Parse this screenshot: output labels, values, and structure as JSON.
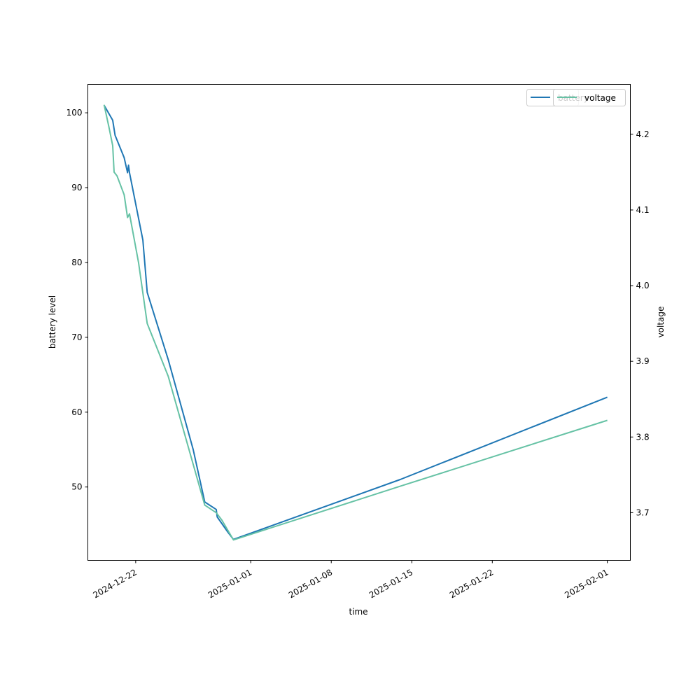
{
  "chart_data": {
    "type": "line",
    "xlabel": "time",
    "ylabel_left": "battery level",
    "ylabel_right": "voltage",
    "x_ticks": [
      "2024-12-22",
      "2025-01-01",
      "2025-01-08",
      "2025-01-15",
      "2025-01-22",
      "2025-02-01"
    ],
    "y_left_ticks": [
      50,
      60,
      70,
      80,
      90,
      100
    ],
    "y_right_ticks": [
      3.7,
      3.8,
      3.9,
      4.0,
      4.1,
      4.2
    ],
    "y_left_range": [
      40.2,
      103.8
    ],
    "y_right_range": [
      3.637,
      4.266
    ],
    "x_range": [
      "2024-12-17T20:10",
      "2025-02-03T00:00"
    ],
    "legend_placement": "top-right",
    "grid": false,
    "series": [
      {
        "name": "battery",
        "axis": "left",
        "color": "#1f77b4",
        "points": [
          [
            "2024-12-19T06:00",
            101
          ],
          [
            "2024-12-20T00:00",
            99
          ],
          [
            "2024-12-20T05:00",
            97
          ],
          [
            "2024-12-21T00:00",
            94
          ],
          [
            "2024-12-21T07:00",
            92
          ],
          [
            "2024-12-21T09:00",
            93
          ],
          [
            "2024-12-21T11:00",
            92
          ],
          [
            "2024-12-22T15:00",
            83
          ],
          [
            "2024-12-23T00:00",
            76
          ],
          [
            "2024-12-24T20:00",
            67
          ],
          [
            "2024-12-27T00:00",
            55
          ],
          [
            "2024-12-28T00:00",
            48
          ],
          [
            "2024-12-29T00:00",
            47
          ],
          [
            "2024-12-29T02:00",
            46
          ],
          [
            "2024-12-30T00:00",
            44
          ],
          [
            "2024-12-30T12:00",
            43
          ],
          [
            "2025-01-14T00:00",
            51
          ],
          [
            "2025-02-01T00:00",
            62
          ]
        ]
      },
      {
        "name": "voltage",
        "axis": "right",
        "color": "#66c2a5",
        "points": [
          [
            "2024-12-19T06:00",
            4.239
          ],
          [
            "2024-12-19T16:00",
            4.21
          ],
          [
            "2024-12-20T00:00",
            4.185
          ],
          [
            "2024-12-20T03:00",
            4.15
          ],
          [
            "2024-12-20T09:00",
            4.145
          ],
          [
            "2024-12-21T00:00",
            4.12
          ],
          [
            "2024-12-21T07:00",
            4.09
          ],
          [
            "2024-12-21T11:00",
            4.095
          ],
          [
            "2024-12-22T06:00",
            4.03
          ],
          [
            "2024-12-23T00:00",
            3.95
          ],
          [
            "2024-12-24T20:00",
            3.88
          ],
          [
            "2024-12-28T00:00",
            3.71
          ],
          [
            "2024-12-29T00:00",
            3.7
          ],
          [
            "2024-12-29T12:00",
            3.69
          ],
          [
            "2024-12-30T12:00",
            3.664
          ],
          [
            "2025-01-14T00:00",
            3.735
          ],
          [
            "2025-02-01T00:00",
            3.822
          ]
        ]
      }
    ]
  }
}
